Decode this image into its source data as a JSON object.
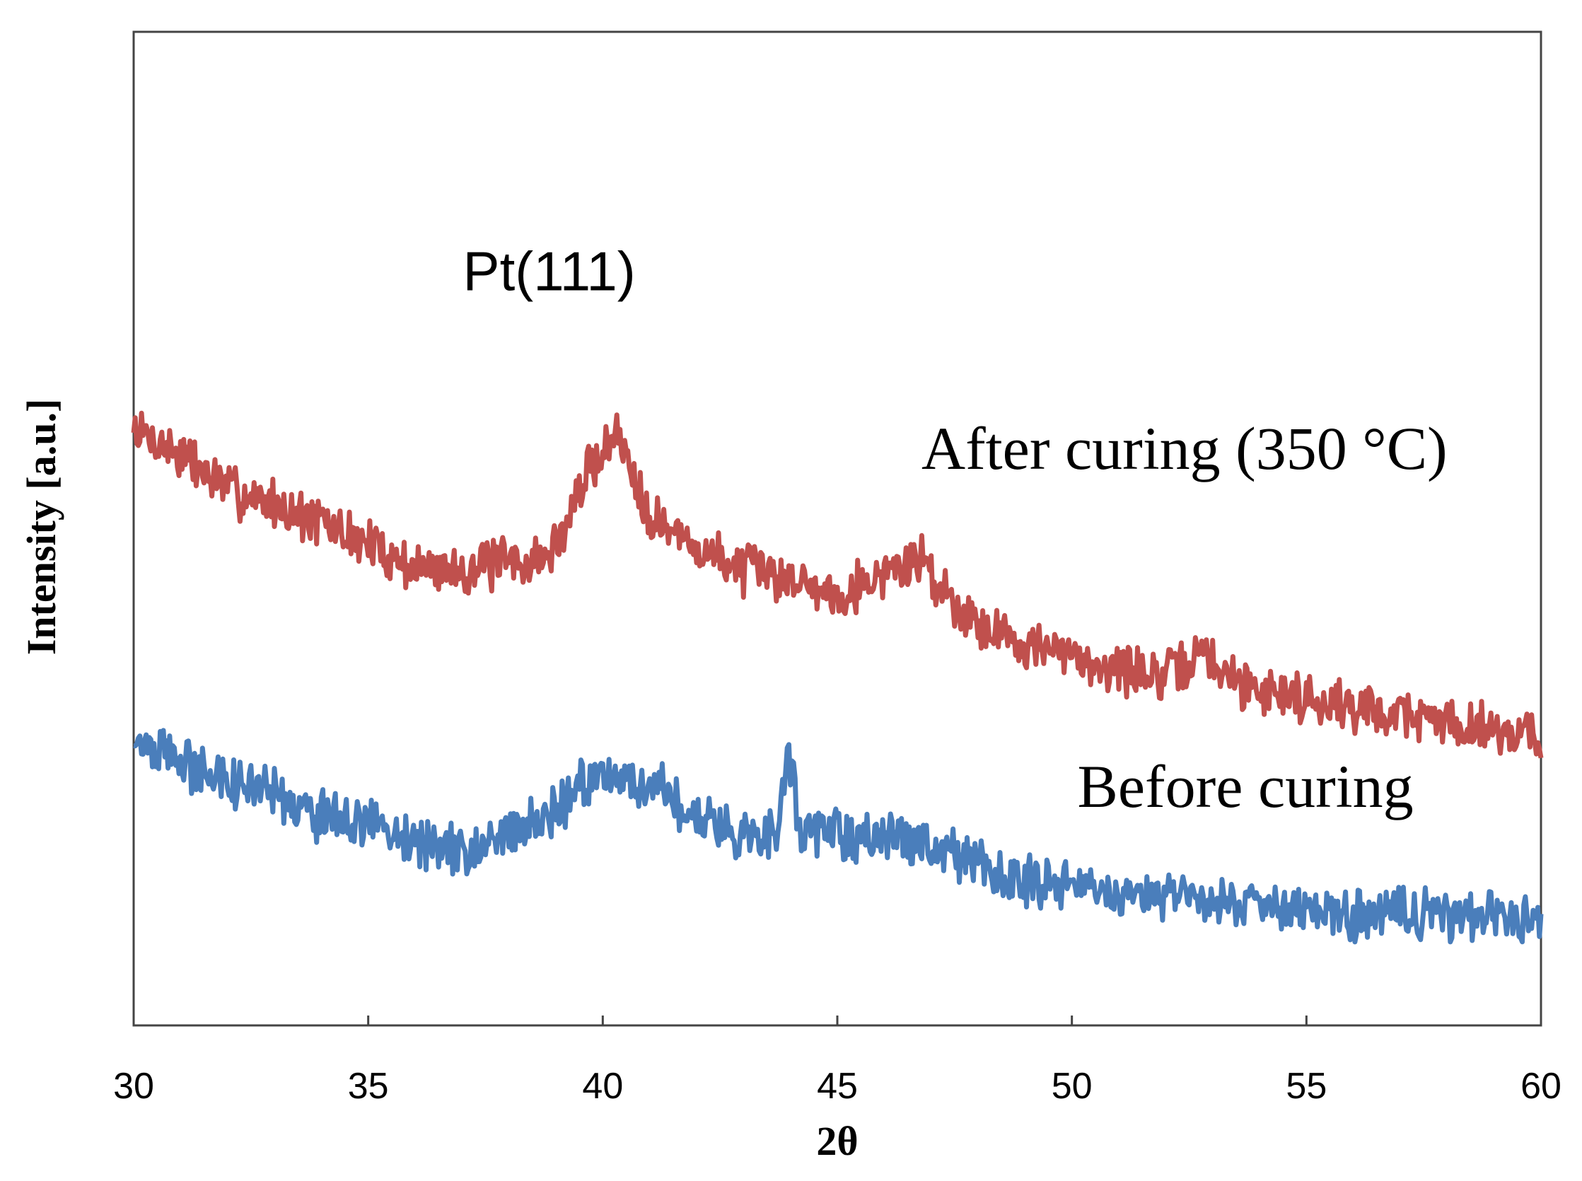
{
  "chart_data": {
    "type": "line",
    "title": "",
    "xlabel": "2θ",
    "ylabel": "Intensity [a.u.]",
    "xlim": [
      30,
      60
    ],
    "ylim": [
      0,
      10
    ],
    "xticks": [
      "30",
      "35",
      "40",
      "45",
      "50",
      "55",
      "60"
    ],
    "grid": false,
    "legend": "none",
    "annotations": [
      {
        "text": "Pt(111)",
        "x": 40.7,
        "y": 7.4
      },
      {
        "text": "After curing (350 °C)",
        "x": 52.4,
        "y": 5.6
      },
      {
        "text": "Before curing",
        "x": 53.7,
        "y": 2.2
      }
    ],
    "series": [
      {
        "name": "After curing (350 °C)",
        "color": "#c0504d",
        "points": [
          [
            30,
            6.0
          ],
          [
            31,
            5.75
          ],
          [
            32,
            5.4
          ],
          [
            33,
            5.25
          ],
          [
            34,
            5.05
          ],
          [
            35,
            4.85
          ],
          [
            36,
            4.6
          ],
          [
            37,
            4.6
          ],
          [
            38,
            4.65
          ],
          [
            38.8,
            4.7
          ],
          [
            39.2,
            5.0
          ],
          [
            39.6,
            5.5
          ],
          [
            40.0,
            5.8
          ],
          [
            40.3,
            5.95
          ],
          [
            40.6,
            5.65
          ],
          [
            41.0,
            5.15
          ],
          [
            41.5,
            4.95
          ],
          [
            42,
            4.8
          ],
          [
            43,
            4.6
          ],
          [
            44,
            4.5
          ],
          [
            45,
            4.35
          ],
          [
            46,
            4.55
          ],
          [
            46.8,
            4.7
          ],
          [
            47.3,
            4.35
          ],
          [
            48,
            4.05
          ],
          [
            49,
            3.85
          ],
          [
            50,
            3.7
          ],
          [
            51,
            3.6
          ],
          [
            52,
            3.5
          ],
          [
            52.8,
            3.75
          ],
          [
            53.5,
            3.45
          ],
          [
            54,
            3.4
          ],
          [
            55,
            3.3
          ],
          [
            56,
            3.2
          ],
          [
            57,
            3.15
          ],
          [
            58,
            3.05
          ],
          [
            59,
            3.0
          ],
          [
            60,
            2.9
          ]
        ]
      },
      {
        "name": "Before curing",
        "color": "#4a7ebb",
        "points": [
          [
            30,
            2.85
          ],
          [
            31,
            2.65
          ],
          [
            32,
            2.45
          ],
          [
            33,
            2.3
          ],
          [
            34,
            2.1
          ],
          [
            35,
            2.0
          ],
          [
            36,
            1.85
          ],
          [
            37,
            1.75
          ],
          [
            38,
            1.95
          ],
          [
            39,
            2.15
          ],
          [
            39.6,
            2.45
          ],
          [
            40.0,
            2.55
          ],
          [
            40.5,
            2.5
          ],
          [
            41,
            2.45
          ],
          [
            42,
            2.1
          ],
          [
            43,
            1.95
          ],
          [
            43.7,
            1.95
          ],
          [
            43.95,
            2.8
          ],
          [
            44.2,
            1.95
          ],
          [
            45,
            1.9
          ],
          [
            46,
            1.9
          ],
          [
            47,
            1.85
          ],
          [
            48,
            1.6
          ],
          [
            49,
            1.45
          ],
          [
            50,
            1.35
          ],
          [
            51,
            1.3
          ],
          [
            52,
            1.3
          ],
          [
            53,
            1.25
          ],
          [
            54,
            1.2
          ],
          [
            55,
            1.15
          ],
          [
            56,
            1.1
          ],
          [
            57,
            1.15
          ],
          [
            58,
            1.1
          ],
          [
            59,
            1.15
          ],
          [
            60,
            1.05
          ]
        ]
      }
    ]
  }
}
